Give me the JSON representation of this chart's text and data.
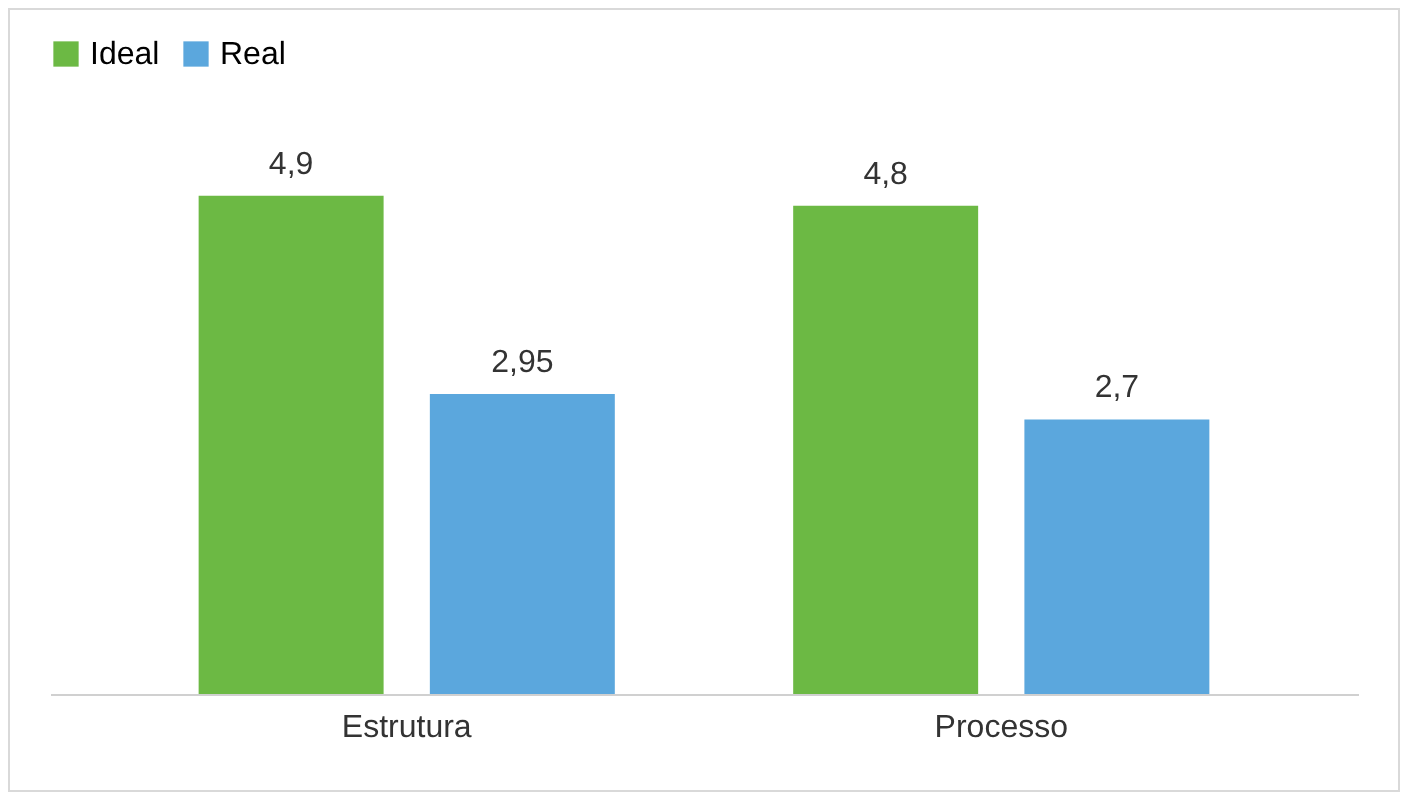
{
  "chart_data": {
    "type": "bar",
    "categories": [
      "Estrutura",
      "Processo"
    ],
    "series": [
      {
        "name": "Ideal",
        "color": "#6cb944",
        "values": [
          4.9,
          4.8
        ],
        "value_labels": [
          "4,9",
          "4,8"
        ]
      },
      {
        "name": "Real",
        "color": "#5ba7dd",
        "values": [
          2.95,
          2.7
        ],
        "value_labels": [
          "2,95",
          "2,7"
        ]
      }
    ],
    "legend": "top",
    "grid": false
  }
}
